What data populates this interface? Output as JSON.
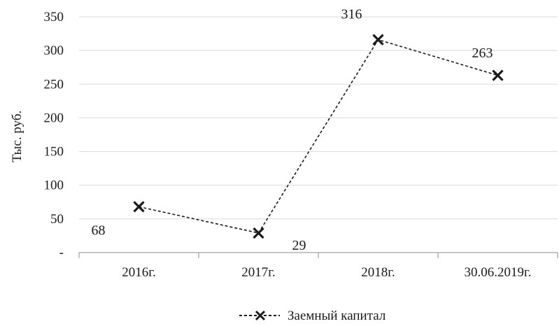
{
  "chart_data": {
    "type": "line",
    "title": "",
    "xlabel": "",
    "ylabel": "Тыс. руб.",
    "ylim": [
      0,
      350
    ],
    "yticks": [
      0,
      50,
      100,
      150,
      200,
      250,
      300,
      350
    ],
    "ytick_labels": [
      "-",
      "50",
      "100",
      "150",
      "200",
      "250",
      "300",
      "350"
    ],
    "categories": [
      "2016г.",
      "2017г.",
      "2018г.",
      "30.06.2019г."
    ],
    "series": [
      {
        "name": "Заемный капитал",
        "values": [
          68,
          29,
          316,
          263
        ],
        "labels": [
          "68",
          "29",
          "316",
          "263"
        ],
        "color": "#1a1a1a",
        "line_style": "dashed",
        "marker": "x"
      }
    ],
    "grid": "horizontal",
    "legend_position": "bottom"
  }
}
